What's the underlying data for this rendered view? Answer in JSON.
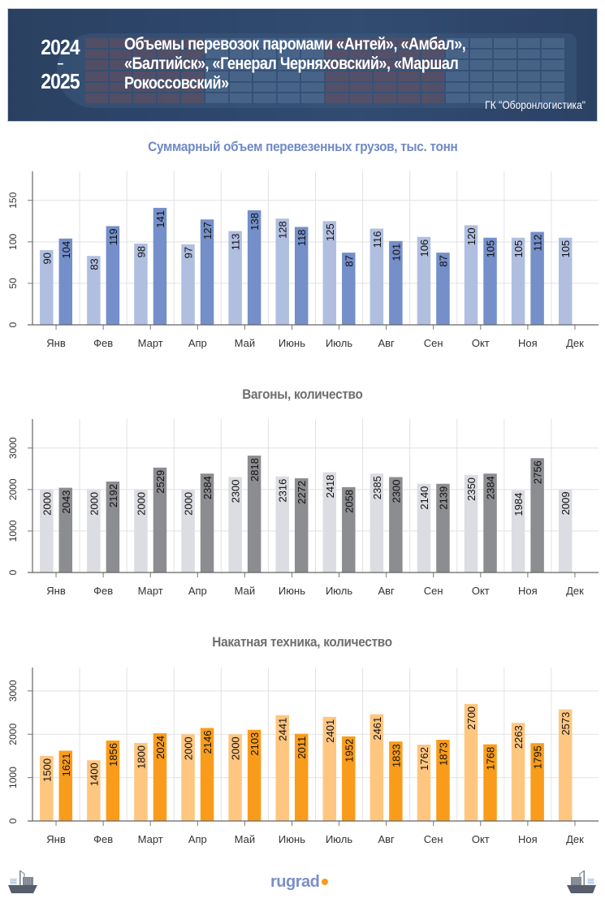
{
  "header": {
    "year_start": "2024",
    "year_separator": "–",
    "year_end": "2025",
    "title_lines": [
      "Объемы перевозок паромами «Антей», «Амбал»,",
      "«Балтийск», «Генерал Черняховский», «Маршал",
      "Рокоссовский»"
    ],
    "organization": "ГК \"Оборонлогистика\""
  },
  "footer": {
    "logo_text": "rugrad",
    "left_icon": "cargo-ship-icon",
    "right_icon": "cargo-ship-icon"
  },
  "colors": {
    "title_blue": "#6f8ac6",
    "title_grey": "#6e6e6e",
    "blue_light": "#b0bfe0",
    "blue_dark": "#748fc9",
    "grey_light": "#dcdde2",
    "grey_dark": "#8c8d91",
    "orange_light": "#ffc680",
    "orange_dark": "#f99c1b",
    "logo_dot": "#f79a1e"
  },
  "chart_data": [
    {
      "type": "bar",
      "title": "Суммарный объем перевезенных грузов, тыс. тонн",
      "xlabel": "",
      "ylabel": "",
      "categories": [
        "Янв",
        "Фев",
        "Март",
        "Апр",
        "Май",
        "Июнь",
        "Июль",
        "Авг",
        "Сен",
        "Окт",
        "Ноя",
        "Дек"
      ],
      "ylim": [
        0,
        185
      ],
      "yticks": [
        0,
        50,
        100,
        150
      ],
      "grid": true,
      "series": [
        {
          "name": "2024",
          "values": [
            90,
            83,
            98,
            97,
            113,
            128,
            125,
            116,
            106,
            120,
            105,
            105
          ]
        },
        {
          "name": "2025",
          "values": [
            104,
            119,
            141,
            127,
            138,
            118,
            87,
            101,
            87,
            105,
            112,
            null
          ]
        }
      ]
    },
    {
      "type": "bar",
      "title": "Вагоны, количество",
      "xlabel": "",
      "ylabel": "",
      "categories": [
        "Янв",
        "Фев",
        "Март",
        "Апр",
        "Май",
        "Июнь",
        "Июль",
        "Авг",
        "Сен",
        "Окт",
        "Ноя",
        "Дек"
      ],
      "ylim": [
        0,
        3700
      ],
      "yticks": [
        0,
        1000,
        2000,
        3000
      ],
      "grid": true,
      "series": [
        {
          "name": "2024",
          "values": [
            2000,
            2000,
            2000,
            2000,
            2300,
            2316,
            2418,
            2385,
            2140,
            2350,
            1984,
            2009
          ]
        },
        {
          "name": "2025",
          "values": [
            2043,
            2192,
            2529,
            2384,
            2818,
            2272,
            2058,
            2300,
            2139,
            2384,
            2756,
            null
          ]
        }
      ]
    },
    {
      "type": "bar",
      "title": "Накатная техника, количество",
      "xlabel": "",
      "ylabel": "",
      "categories": [
        "Янв",
        "Фев",
        "Март",
        "Апр",
        "Май",
        "Июнь",
        "Июль",
        "Авг",
        "Сен",
        "Окт",
        "Ноя",
        "Дек"
      ],
      "ylim": [
        0,
        3540
      ],
      "yticks": [
        0,
        1000,
        2000,
        3000
      ],
      "grid": true,
      "series": [
        {
          "name": "2024",
          "values": [
            1500,
            1400,
            1800,
            2000,
            2000,
            2441,
            2401,
            2461,
            1762,
            2700,
            2263,
            2573
          ]
        },
        {
          "name": "2025",
          "values": [
            1621,
            1856,
            2024,
            2146,
            2103,
            2011,
            1952,
            1833,
            1873,
            1768,
            1795,
            null
          ]
        }
      ]
    }
  ]
}
